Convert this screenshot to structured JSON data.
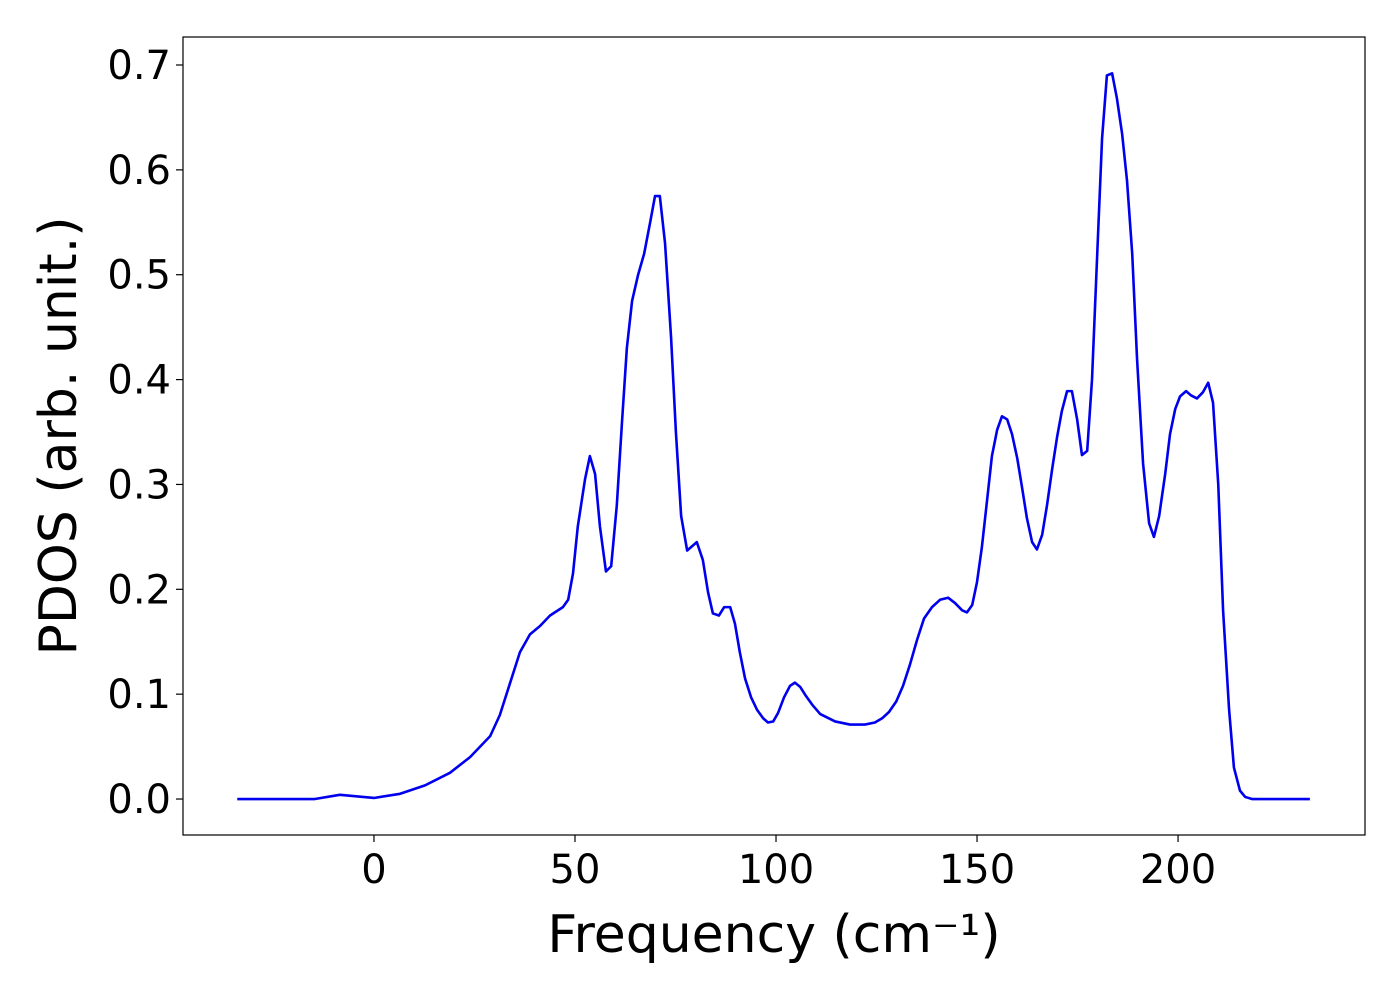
{
  "chart_data": {
    "type": "line",
    "xlabel": "Frequency (cm⁻¹)",
    "ylabel": "PDOS (arb. unit.)",
    "xlim": [
      -47.5,
      246.5
    ],
    "ylim": [
      -0.0343,
      0.7267
    ],
    "xticks": [
      0,
      50,
      100,
      150,
      200
    ],
    "yticks": [
      {
        "value": 0,
        "label": "0.0"
      },
      0.1,
      0.2,
      0.3,
      0.4,
      0.5,
      0.6,
      0.7
    ],
    "x": [
      -34,
      -14.7,
      -8.5,
      0,
      6.5,
      12.7,
      18.9,
      23.9,
      28.9,
      31.3,
      33.8,
      36.3,
      38.8,
      41.3,
      43.8,
      47,
      48.3,
      49.5,
      50.7,
      52.5,
      53.7,
      55,
      56.2,
      57.7,
      59,
      60.4,
      61.7,
      62.9,
      64.2,
      65.7,
      67.2,
      68.7,
      69.9,
      71.1,
      72.4,
      73.9,
      75.1,
      76.4,
      77.9,
      80.3,
      81.8,
      83.1,
      84.3,
      85.8,
      87.1,
      88.6,
      89.8,
      91,
      92.3,
      93.8,
      95.3,
      96.8,
      98,
      99.3,
      100.5,
      102,
      103.5,
      104.7,
      106,
      107.5,
      109,
      111,
      114.7,
      118.4,
      122.1,
      124.6,
      126.4,
      128.1,
      129.9,
      131.6,
      133.3,
      135.1,
      136.8,
      138.8,
      140.8,
      142.8,
      144.5,
      146.3,
      147.5,
      148.8,
      150,
      151.2,
      152.5,
      153.7,
      155,
      156.2,
      157.5,
      158.7,
      160,
      161.2,
      162.4,
      163.7,
      164.9,
      166.2,
      167.4,
      168.7,
      169.9,
      171.1,
      172.4,
      173.6,
      174.9,
      176.1,
      177.4,
      178.6,
      179.9,
      181.1,
      182.3,
      183.6,
      184.8,
      186.1,
      187.3,
      188.6,
      189.8,
      191.3,
      192.8,
      194,
      195.3,
      196.8,
      198,
      199.3,
      200.5,
      202,
      203.2,
      204.7,
      206.2,
      207.5,
      208.7,
      210,
      211.2,
      212.7,
      213.9,
      215.4,
      216.7,
      218.4,
      232.8
    ],
    "series": [
      {
        "name": "PDOS",
        "color": "#0000ee",
        "values": [
          0,
          0,
          0.004,
          0.001,
          0.005,
          0.013,
          0.025,
          0.04,
          0.06,
          0.08,
          0.11,
          0.14,
          0.157,
          0.165,
          0.175,
          0.183,
          0.19,
          0.215,
          0.26,
          0.305,
          0.327,
          0.31,
          0.26,
          0.217,
          0.222,
          0.28,
          0.36,
          0.43,
          0.475,
          0.5,
          0.52,
          0.55,
          0.575,
          0.575,
          0.53,
          0.44,
          0.35,
          0.27,
          0.237,
          0.245,
          0.228,
          0.197,
          0.177,
          0.175,
          0.183,
          0.183,
          0.167,
          0.14,
          0.115,
          0.097,
          0.085,
          0.077,
          0.073,
          0.074,
          0.082,
          0.097,
          0.108,
          0.111,
          0.107,
          0.098,
          0.09,
          0.081,
          0.074,
          0.071,
          0.071,
          0.073,
          0.077,
          0.083,
          0.093,
          0.108,
          0.128,
          0.152,
          0.172,
          0.183,
          0.19,
          0.192,
          0.187,
          0.18,
          0.178,
          0.185,
          0.207,
          0.24,
          0.285,
          0.327,
          0.352,
          0.365,
          0.362,
          0.348,
          0.325,
          0.297,
          0.268,
          0.245,
          0.238,
          0.252,
          0.28,
          0.315,
          0.345,
          0.37,
          0.389,
          0.389,
          0.362,
          0.328,
          0.332,
          0.4,
          0.52,
          0.63,
          0.69,
          0.692,
          0.668,
          0.634,
          0.59,
          0.52,
          0.42,
          0.32,
          0.263,
          0.25,
          0.27,
          0.31,
          0.348,
          0.372,
          0.384,
          0.389,
          0.385,
          0.382,
          0.388,
          0.397,
          0.378,
          0.3,
          0.18,
          0.085,
          0.03,
          0.008,
          0.002,
          0,
          0
        ]
      }
    ]
  }
}
